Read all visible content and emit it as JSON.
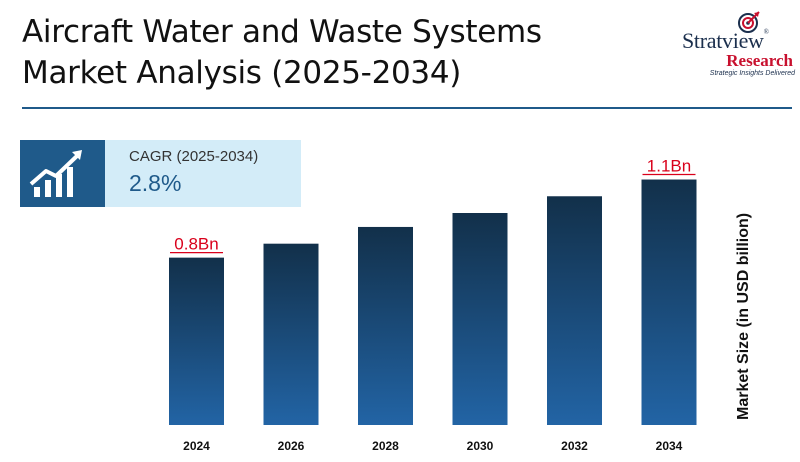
{
  "header": {
    "title_line1": "Aircraft Water and Waste Systems",
    "title_line2": "Market Analysis (2025-2034)"
  },
  "logo": {
    "brand": "Stratview",
    "registered": "®",
    "research": "Research",
    "tagline": "Strategic Insights Delivered",
    "icon": "target-arrow-icon"
  },
  "cagr": {
    "label": "CAGR (2025-2034)",
    "value": "2.8%",
    "icon": "growth-chart-icon"
  },
  "colors": {
    "bar_top": "#12304a",
    "bar_bottom": "#2264a5",
    "label_accent": "#d9001b",
    "accent": "#1f5a8a"
  },
  "chart_data": {
    "type": "bar",
    "categories": [
      "2024",
      "2026",
      "2028",
      "2030",
      "2032",
      "2034"
    ],
    "values": [
      0.8,
      0.85,
      0.91,
      0.96,
      1.02,
      1.08
    ],
    "value_labels": [
      "0.8Bn",
      "",
      "",
      "",
      "",
      "1.1Bn"
    ],
    "title": "",
    "xlabel": "",
    "ylabel": "Market Size (in USD billion)",
    "ylim": [
      0.2,
      1.15
    ],
    "grid": false,
    "legend": "none"
  }
}
